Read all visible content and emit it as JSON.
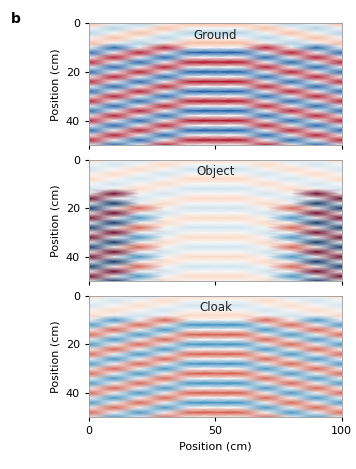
{
  "label": "b",
  "chart_data": [
    {
      "type": "heatmap",
      "title": "Ground",
      "ylabel": "Position (cm)",
      "tick_labels": "y",
      "x": [
        0,
        10,
        20,
        30,
        40,
        50,
        60,
        70,
        80,
        90,
        100
      ],
      "y": [
        0,
        2,
        4,
        6,
        8,
        10,
        12,
        14,
        16,
        18,
        20,
        22,
        24,
        26,
        28,
        30,
        32,
        34,
        36,
        38,
        40,
        42,
        44,
        46,
        48,
        50
      ],
      "xlim": [
        0,
        100
      ],
      "ylim": [
        50,
        0
      ],
      "xticks": [
        0,
        50,
        100
      ],
      "yticks": [
        0,
        20,
        40
      ],
      "cells": [
        [
          0.3,
          0,
          -0.3,
          0,
          0.3,
          0.3,
          0.3,
          0,
          -0.3,
          0,
          0.3
        ],
        [
          0,
          -0.3,
          0,
          0.3,
          0,
          0,
          0,
          0.3,
          0,
          -0.3,
          0
        ],
        [
          -0.3,
          0,
          0.3,
          0,
          -0.3,
          -0.3,
          -0.3,
          0,
          0.3,
          0,
          -0.3
        ],
        [
          0,
          0.3,
          0,
          -0.3,
          0,
          0,
          0,
          -0.3,
          0,
          0.3,
          0
        ],
        [
          0.3,
          0,
          -0.3,
          0,
          0.3,
          0.3,
          0.3,
          0,
          -0.3,
          0,
          0.3
        ],
        [
          0,
          -0.8,
          0,
          0.8,
          0,
          0,
          0,
          0.8,
          0,
          -0.8,
          0
        ],
        [
          -0.8,
          0,
          0.8,
          0,
          -0.8,
          -0.8,
          -0.8,
          0,
          0.8,
          0,
          -0.8
        ],
        [
          0,
          0.8,
          0,
          -0.8,
          0,
          0,
          0,
          -0.8,
          0,
          0.8,
          0
        ],
        [
          0.8,
          0,
          -0.8,
          0,
          0.8,
          0.8,
          0.8,
          0,
          -0.8,
          0,
          0.8
        ],
        [
          0,
          -0.8,
          0,
          0.8,
          0,
          0,
          0,
          0.8,
          0,
          -0.8,
          0
        ],
        [
          -0.8,
          0,
          0.8,
          0,
          -0.8,
          -0.8,
          -0.8,
          0,
          0.8,
          0,
          -0.8
        ],
        [
          0,
          0.8,
          0,
          -0.8,
          0,
          0,
          0,
          -0.8,
          0,
          0.8,
          0
        ],
        [
          0.8,
          0,
          -0.8,
          0,
          0.8,
          0.8,
          0.8,
          0,
          -0.8,
          0,
          0.8
        ],
        [
          0,
          -0.8,
          0,
          0.8,
          0,
          0,
          0,
          0.8,
          0,
          -0.8,
          0
        ],
        [
          -0.8,
          0,
          0.8,
          0,
          -0.8,
          -0.8,
          -0.8,
          0,
          0.8,
          0,
          -0.8
        ],
        [
          0,
          0.8,
          0,
          -0.8,
          0,
          0,
          0,
          -0.8,
          0,
          0.8,
          0
        ],
        [
          0.8,
          0,
          -0.8,
          0,
          0.8,
          0.8,
          0.8,
          0,
          -0.8,
          0,
          0.8
        ],
        [
          0,
          -0.8,
          0,
          0.8,
          0,
          0,
          0,
          0.8,
          0,
          -0.8,
          0
        ],
        [
          -0.8,
          0,
          0.8,
          0,
          -0.8,
          -0.8,
          -0.8,
          0,
          0.8,
          0,
          -0.8
        ],
        [
          0,
          0.8,
          0,
          -0.8,
          0,
          0,
          0,
          -0.8,
          0,
          0.8,
          0
        ],
        [
          0.8,
          0,
          -0.8,
          0,
          0.8,
          0.8,
          0.8,
          0,
          -0.8,
          0,
          0.8
        ],
        [
          0,
          -0.8,
          0,
          0.8,
          0,
          0,
          0,
          0.8,
          0,
          -0.8,
          0
        ],
        [
          -0.8,
          0,
          0.8,
          0,
          -0.8,
          -0.8,
          -0.8,
          0,
          0.8,
          0,
          -0.8
        ],
        [
          0,
          0.8,
          0,
          -0.8,
          0,
          0,
          0,
          -0.8,
          0,
          0.8,
          0
        ],
        [
          0.8,
          0,
          -0.8,
          0,
          0.8,
          0.8,
          0.8,
          0,
          -0.8,
          0,
          0.8
        ],
        [
          0,
          -0.8,
          0,
          0.8,
          0,
          0,
          0,
          0.8,
          0,
          -0.8,
          0
        ]
      ]
    },
    {
      "type": "heatmap",
      "title": "Object",
      "ylabel": "Position (cm)",
      "tick_labels": "y",
      "x": [
        0,
        10,
        20,
        30,
        40,
        50,
        60,
        70,
        80,
        90,
        100
      ],
      "y": [
        0,
        2,
        4,
        6,
        8,
        10,
        12,
        14,
        16,
        18,
        20,
        22,
        24,
        26,
        28,
        30,
        32,
        34,
        36,
        38,
        40,
        42,
        44,
        46,
        48,
        50
      ],
      "xlim": [
        0,
        100
      ],
      "ylim": [
        50,
        0
      ],
      "xticks": [
        0,
        50,
        100
      ],
      "yticks": [
        0,
        20,
        40
      ],
      "cells": [
        [
          0.2,
          0,
          -0.2,
          0,
          0.2,
          0.2,
          0.2,
          0,
          -0.2,
          0,
          0.2
        ],
        [
          0,
          -0.2,
          0,
          0.2,
          0,
          0,
          0,
          0.2,
          0,
          -0.2,
          0
        ],
        [
          -0.2,
          0,
          0.2,
          0,
          -0.2,
          -0.2,
          -0.2,
          0,
          0.2,
          0,
          -0.2
        ],
        [
          0,
          0.2,
          0,
          -0.2,
          0,
          0,
          0,
          -0.2,
          0,
          0.2,
          0
        ],
        [
          0.2,
          0,
          -0.2,
          0,
          0.2,
          0.2,
          0.2,
          0,
          -0.2,
          0,
          0.2
        ],
        [
          0,
          -0.2,
          0,
          0.2,
          0,
          0,
          0,
          0.2,
          0,
          -0.2,
          0
        ],
        [
          -0.2,
          0,
          0.2,
          0,
          -0.2,
          -0.2,
          -0.2,
          0,
          0.2,
          0,
          -0.2
        ],
        [
          0,
          1,
          0,
          -0.2,
          0,
          0,
          0,
          -0.2,
          0,
          1,
          0
        ],
        [
          1,
          0,
          -0.2,
          0,
          0.2,
          0.2,
          0.2,
          0,
          -0.2,
          0,
          1
        ],
        [
          0,
          -1,
          0,
          0.2,
          0,
          0,
          0,
          0.2,
          0,
          -1,
          0
        ],
        [
          -1,
          0,
          0.6,
          0,
          -0.2,
          -0.2,
          -0.2,
          0,
          0.6,
          0,
          -1
        ],
        [
          0,
          1,
          0,
          -0.2,
          0,
          0,
          0,
          -0.2,
          0,
          1,
          0
        ],
        [
          1,
          0,
          -0.6,
          0,
          0.2,
          0.2,
          0.2,
          0,
          -0.6,
          0,
          1
        ],
        [
          0,
          -1,
          0,
          0.2,
          0,
          0,
          0,
          0.2,
          0,
          -1,
          0
        ],
        [
          -1,
          0,
          0.6,
          0,
          -0.2,
          -0.2,
          -0.2,
          0,
          0.6,
          0,
          -1
        ],
        [
          0,
          1,
          0,
          -0.2,
          0,
          0,
          0,
          -0.2,
          0,
          1,
          0
        ],
        [
          1,
          0,
          -0.6,
          0,
          0.2,
          0.2,
          0.2,
          0,
          -0.6,
          0,
          1
        ],
        [
          0,
          -1,
          0,
          0.2,
          0,
          0,
          0,
          0.2,
          0,
          -1,
          0
        ],
        [
          -1,
          0,
          0.6,
          0,
          -0.2,
          -0.2,
          -0.2,
          0,
          0.6,
          0,
          -1
        ],
        [
          0,
          1,
          0,
          -0.2,
          0,
          0,
          0,
          -0.2,
          0,
          1,
          0
        ],
        [
          1,
          0,
          -0.6,
          0,
          0.2,
          0.2,
          0.2,
          0,
          -0.6,
          0,
          1
        ],
        [
          0,
          -1,
          0,
          0.2,
          0,
          0,
          0,
          0.2,
          0,
          -1,
          0
        ],
        [
          -1,
          0,
          0.6,
          0,
          -0.2,
          -0.2,
          -0.2,
          0,
          0.6,
          0,
          -1
        ],
        [
          0,
          1,
          0,
          -0.2,
          0,
          0,
          0,
          -0.2,
          0,
          1,
          0
        ],
        [
          1,
          0,
          -0.6,
          0,
          0.2,
          0.2,
          0.2,
          0,
          -0.6,
          0,
          1
        ],
        [
          0,
          -1,
          0,
          0.2,
          0,
          0,
          0,
          0.2,
          0,
          -1,
          0
        ]
      ]
    },
    {
      "type": "heatmap",
      "title": "Cloak",
      "xlabel": "Position (cm)",
      "ylabel": "Position (cm)",
      "x": [
        0,
        10,
        20,
        30,
        40,
        50,
        60,
        70,
        80,
        90,
        100
      ],
      "y": [
        0,
        2,
        4,
        6,
        8,
        10,
        12,
        14,
        16,
        18,
        20,
        22,
        24,
        26,
        28,
        30,
        32,
        34,
        36,
        38,
        40,
        42,
        44,
        46,
        48,
        50
      ],
      "xlim": [
        0,
        100
      ],
      "ylim": [
        50,
        0
      ],
      "xticks": [
        0,
        50,
        100
      ],
      "yticks": [
        0,
        20,
        40
      ],
      "cells": [
        [
          0.2,
          0,
          -0.2,
          0,
          0.2,
          0.2,
          0.2,
          0,
          -0.2,
          0,
          0.2
        ],
        [
          0,
          -0.2,
          0,
          0.2,
          0,
          0,
          0,
          0.2,
          0,
          -0.2,
          0
        ],
        [
          -0.2,
          0,
          0.2,
          0,
          -0.2,
          -0.2,
          -0.2,
          0,
          0.2,
          0,
          -0.2
        ],
        [
          0,
          0.2,
          0,
          -0.2,
          0,
          0,
          0,
          -0.2,
          0,
          0.2,
          0
        ],
        [
          0.2,
          0,
          -0.2,
          0,
          0.2,
          0.2,
          0.2,
          0,
          -0.2,
          0,
          0.2
        ],
        [
          0,
          -0.6,
          0,
          0.6,
          0,
          0,
          0,
          0.6,
          0,
          -0.6,
          0
        ],
        [
          -0.6,
          0,
          0.6,
          0,
          -0.6,
          -0.6,
          -0.6,
          0,
          0.6,
          0,
          -0.6
        ],
        [
          0,
          0.6,
          0,
          -0.6,
          0,
          0,
          0,
          -0.6,
          0,
          0.6,
          0
        ],
        [
          0.6,
          0,
          -0.6,
          0,
          0.6,
          0.6,
          0.6,
          0,
          -0.6,
          0,
          0.6
        ],
        [
          0,
          -0.6,
          0,
          0.6,
          0,
          0,
          0,
          0.6,
          0,
          -0.6,
          0
        ],
        [
          -0.6,
          0,
          0.6,
          0,
          -0.6,
          -0.6,
          -0.6,
          0,
          0.6,
          0,
          -0.6
        ],
        [
          0,
          0.6,
          0,
          -0.6,
          0,
          0,
          0,
          -0.6,
          0,
          0.6,
          0
        ],
        [
          0.6,
          0,
          -0.6,
          0,
          0.6,
          0.6,
          0.6,
          0,
          -0.6,
          0,
          0.6
        ],
        [
          0,
          -0.6,
          0,
          0.6,
          0,
          0,
          0,
          0.6,
          0,
          -0.6,
          0
        ],
        [
          -0.6,
          0,
          0.6,
          0,
          -0.6,
          -0.6,
          -0.6,
          0,
          0.6,
          0,
          -0.6
        ],
        [
          0,
          0.6,
          0,
          -0.6,
          0,
          0,
          0,
          -0.6,
          0,
          0.6,
          0
        ],
        [
          0.6,
          0,
          -0.6,
          0,
          0.6,
          0.6,
          0.6,
          0,
          -0.6,
          0,
          0.6
        ],
        [
          0,
          -0.6,
          0,
          0.6,
          0,
          0,
          0,
          0.6,
          0,
          -0.6,
          0
        ],
        [
          -0.6,
          0,
          0.6,
          0,
          -0.6,
          -0.6,
          -0.6,
          0,
          0.6,
          0,
          -0.6
        ],
        [
          0,
          0.6,
          0,
          -0.6,
          0,
          0,
          0,
          -0.6,
          0,
          0.6,
          0
        ],
        [
          0.6,
          0,
          -0.6,
          0,
          0.6,
          0.6,
          0.6,
          0,
          -0.6,
          0,
          0.6
        ],
        [
          0,
          -0.6,
          0,
          0.6,
          0,
          0,
          0,
          0.6,
          0,
          -0.6,
          0
        ],
        [
          -0.6,
          0,
          0.6,
          0,
          -0.6,
          -0.6,
          -0.6,
          0,
          0.6,
          0,
          -0.6
        ],
        [
          0,
          0.6,
          0,
          -0.6,
          0,
          0,
          0,
          -0.6,
          0,
          0.6,
          0
        ],
        [
          0.6,
          0,
          -0.6,
          0,
          0.6,
          0.6,
          0.6,
          0,
          -0.6,
          0,
          0.6
        ],
        [
          0,
          -0.6,
          0,
          0.6,
          0,
          0,
          0,
          0.6,
          0,
          -0.6,
          0
        ]
      ]
    }
  ]
}
